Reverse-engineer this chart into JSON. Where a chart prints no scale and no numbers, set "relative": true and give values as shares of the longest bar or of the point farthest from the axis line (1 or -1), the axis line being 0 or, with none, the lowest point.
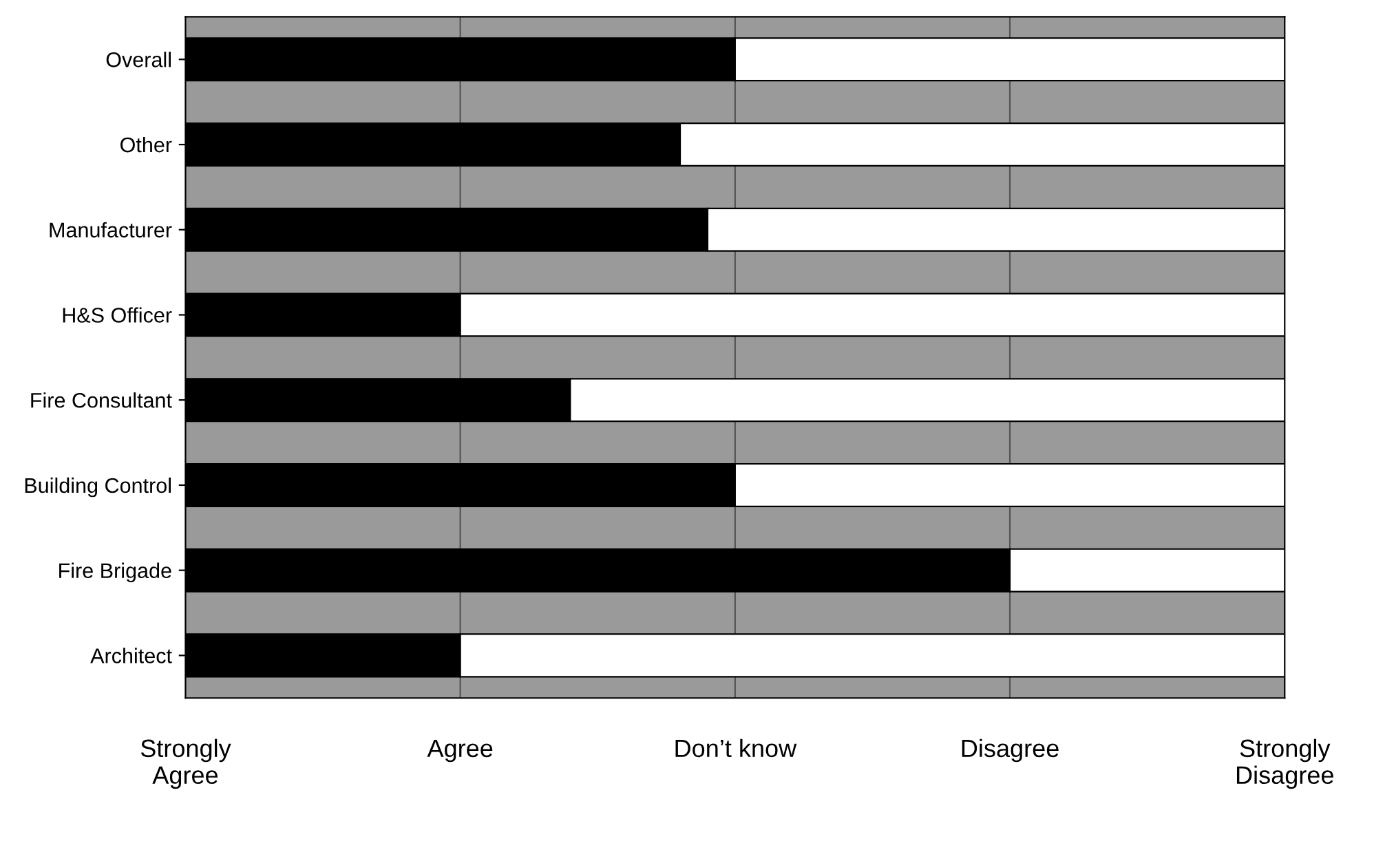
{
  "chart_data": {
    "type": "bar",
    "orientation": "horizontal",
    "stacked": true,
    "relative": true,
    "categories": [
      "Overall",
      "Other",
      "Manufacturer",
      "H&S Officer",
      "Fire Consultant",
      "Building Control",
      "Fire Brigade",
      "Architect"
    ],
    "series": [
      {
        "color": "#000000",
        "values": [
          0.5,
          0.45,
          0.475,
          0.25,
          0.35,
          0.5,
          0.75,
          0.25
        ]
      },
      {
        "color": "#ffffff",
        "values": [
          0.5,
          0.55,
          0.525,
          0.75,
          0.65,
          0.5,
          0.25,
          0.75
        ]
      }
    ],
    "annotations": [
      "Strongly\nAgree",
      "Agree",
      "Don’t know",
      "Disagree",
      "Strongly\nDisagree"
    ],
    "grid": "x"
  }
}
